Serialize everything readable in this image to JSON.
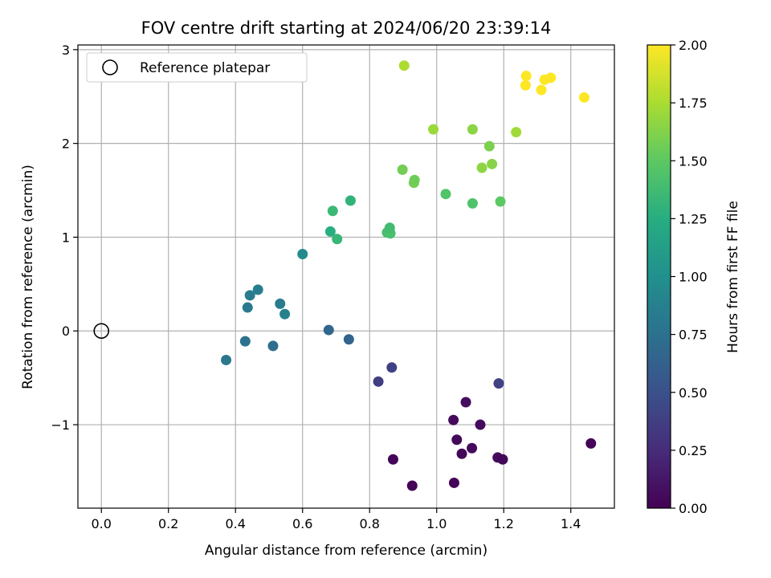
{
  "chart_data": {
    "type": "scatter",
    "title": "FOV centre drift starting at 2024/06/20 23:39:14",
    "xlabel": "Angular distance from reference (arcmin)",
    "ylabel": "Rotation from reference (arcmin)",
    "xlim": [
      -0.07,
      1.53
    ],
    "ylim": [
      -1.89,
      3.05
    ],
    "xticks": [
      0.0,
      0.2,
      0.4,
      0.6,
      0.8,
      1.0,
      1.2,
      1.4
    ],
    "xtick_labels": [
      "0.0",
      "0.2",
      "0.4",
      "0.6",
      "0.8",
      "1.0",
      "1.2",
      "1.4"
    ],
    "yticks": [
      -1,
      0,
      1,
      2,
      3
    ],
    "ytick_labels": [
      "−1",
      "0",
      "1",
      "2",
      "3"
    ],
    "grid": true,
    "legend": {
      "placement": "upper-left",
      "entries": [
        "Reference platepar"
      ]
    },
    "reference": {
      "x": 0.0,
      "y": 0.0,
      "label": "Reference platepar",
      "marker": "open-circle"
    },
    "colorbar": {
      "label": "Hours from first FF file",
      "colormap": "viridis",
      "range": [
        0.0,
        2.0
      ],
      "ticks": [
        0.0,
        0.25,
        0.5,
        0.75,
        1.0,
        1.25,
        1.5,
        1.75,
        2.0
      ],
      "tick_labels": [
        "0.00",
        "0.25",
        "0.50",
        "0.75",
        "1.00",
        "1.25",
        "1.50",
        "1.75",
        "2.00"
      ]
    },
    "points": [
      {
        "x": 0.87,
        "y": -1.37,
        "c": 0.02
      },
      {
        "x": 0.927,
        "y": -1.65,
        "c": 0.02
      },
      {
        "x": 1.052,
        "y": -1.62,
        "c": 0.02
      },
      {
        "x": 1.075,
        "y": -1.31,
        "c": 0.03
      },
      {
        "x": 1.06,
        "y": -1.16,
        "c": 0.04
      },
      {
        "x": 1.05,
        "y": -0.95,
        "c": 0.05
      },
      {
        "x": 1.105,
        "y": -1.25,
        "c": 0.06
      },
      {
        "x": 1.13,
        "y": -1.0,
        "c": 0.05
      },
      {
        "x": 1.087,
        "y": -0.76,
        "c": 0.07
      },
      {
        "x": 1.182,
        "y": -1.35,
        "c": 0.06
      },
      {
        "x": 1.197,
        "y": -1.37,
        "c": 0.04
      },
      {
        "x": 1.46,
        "y": -1.2,
        "c": 0.03
      },
      {
        "x": 0.826,
        "y": -0.54,
        "c": 0.37
      },
      {
        "x": 0.866,
        "y": -0.39,
        "c": 0.39
      },
      {
        "x": 1.185,
        "y": -0.56,
        "c": 0.4
      },
      {
        "x": 0.372,
        "y": -0.31,
        "c": 0.8
      },
      {
        "x": 0.429,
        "y": -0.11,
        "c": 0.76
      },
      {
        "x": 0.512,
        "y": -0.16,
        "c": 0.72
      },
      {
        "x": 0.678,
        "y": 0.01,
        "c": 0.68
      },
      {
        "x": 0.738,
        "y": -0.09,
        "c": 0.65
      },
      {
        "x": 0.436,
        "y": 0.25,
        "c": 0.82
      },
      {
        "x": 0.443,
        "y": 0.38,
        "c": 0.84
      },
      {
        "x": 0.467,
        "y": 0.44,
        "c": 0.86
      },
      {
        "x": 0.533,
        "y": 0.29,
        "c": 0.84
      },
      {
        "x": 0.547,
        "y": 0.18,
        "c": 0.88
      },
      {
        "x": 0.6,
        "y": 0.82,
        "c": 0.96
      },
      {
        "x": 0.683,
        "y": 1.06,
        "c": 1.26
      },
      {
        "x": 0.69,
        "y": 1.28,
        "c": 1.35
      },
      {
        "x": 0.703,
        "y": 0.98,
        "c": 1.33
      },
      {
        "x": 0.743,
        "y": 1.39,
        "c": 1.3
      },
      {
        "x": 0.852,
        "y": 1.05,
        "c": 1.4
      },
      {
        "x": 0.862,
        "y": 1.04,
        "c": 1.42
      },
      {
        "x": 0.86,
        "y": 1.1,
        "c": 1.38
      },
      {
        "x": 1.027,
        "y": 1.46,
        "c": 1.45
      },
      {
        "x": 1.107,
        "y": 1.36,
        "c": 1.44
      },
      {
        "x": 1.19,
        "y": 1.38,
        "c": 1.5
      },
      {
        "x": 0.898,
        "y": 1.72,
        "c": 1.57
      },
      {
        "x": 0.932,
        "y": 1.58,
        "c": 1.58
      },
      {
        "x": 0.934,
        "y": 1.61,
        "c": 1.56
      },
      {
        "x": 1.135,
        "y": 1.74,
        "c": 1.66
      },
      {
        "x": 1.165,
        "y": 1.78,
        "c": 1.64
      },
      {
        "x": 0.99,
        "y": 2.15,
        "c": 1.7
      },
      {
        "x": 1.107,
        "y": 2.15,
        "c": 1.65
      },
      {
        "x": 1.157,
        "y": 1.97,
        "c": 1.6
      },
      {
        "x": 1.237,
        "y": 2.12,
        "c": 1.72
      },
      {
        "x": 0.903,
        "y": 2.83,
        "c": 1.76
      },
      {
        "x": 1.265,
        "y": 2.62,
        "c": 2.0
      },
      {
        "x": 1.267,
        "y": 2.72,
        "c": 2.0
      },
      {
        "x": 1.312,
        "y": 2.57,
        "c": 2.0
      },
      {
        "x": 1.322,
        "y": 2.68,
        "c": 2.0
      },
      {
        "x": 1.34,
        "y": 2.7,
        "c": 2.0
      },
      {
        "x": 1.44,
        "y": 2.49,
        "c": 2.0
      }
    ]
  }
}
